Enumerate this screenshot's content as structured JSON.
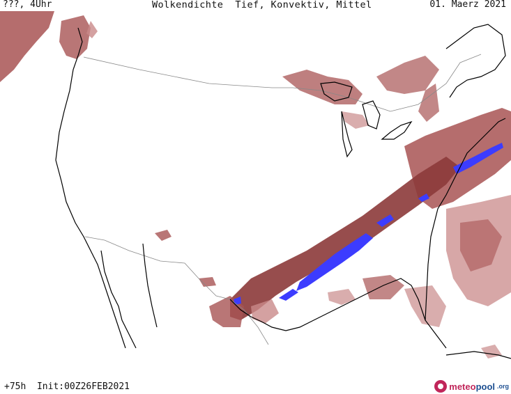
{
  "header": {
    "time_label": "???, 4Uhr",
    "title": "Wolkendichte  Tief, Konvektiv, Mittel",
    "date": "01. Maerz 2021"
  },
  "footer": {
    "run_info": "+75h  Init:00Z26FEB2021"
  },
  "logo": {
    "name_part1": "meteo",
    "name_part2": "pool",
    "tld": ".org"
  },
  "colors": {
    "cloud_dark": "#8c3a3a",
    "cloud_mid": "#a85454",
    "cloud_light": "#c98a8a",
    "convective": "#3c3cff",
    "coastline": "#000000",
    "border": "#888888",
    "brand": "#c0265a"
  }
}
